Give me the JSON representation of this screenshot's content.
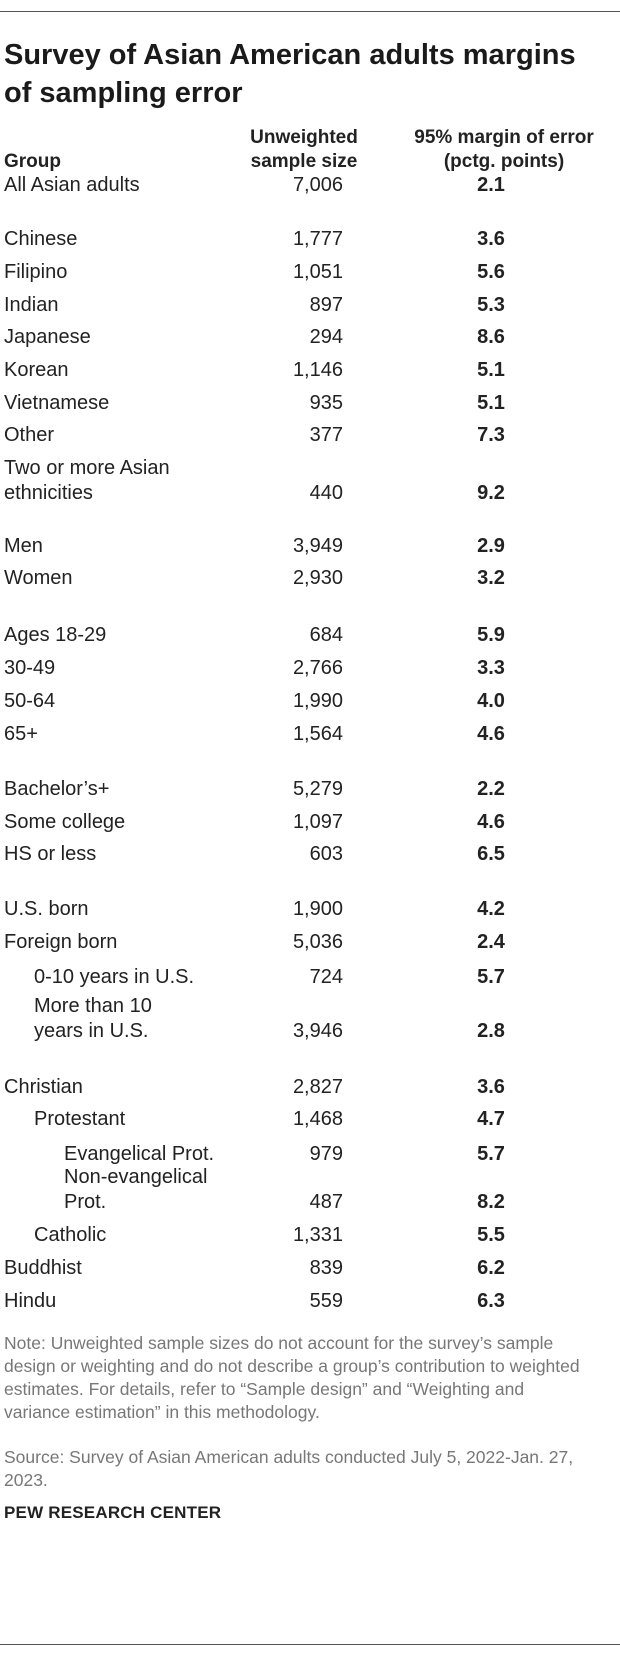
{
  "title": "Survey of Asian American adults margins of sampling error",
  "headers": {
    "group": "Group",
    "sample_size": "Unweighted sample size",
    "margin": "95% margin of error (pctg. points)"
  },
  "rows": [
    {
      "group": "All Asian adults",
      "n": "7,006",
      "moe": "2.1"
    },
    {
      "group": "Chinese",
      "n": "1,777",
      "moe": "3.6"
    },
    {
      "group": "Filipino",
      "n": "1,051",
      "moe": "5.6"
    },
    {
      "group": "Indian",
      "n": "897",
      "moe": "5.3"
    },
    {
      "group": "Japanese",
      "n": "294",
      "moe": "8.6"
    },
    {
      "group": "Korean",
      "n": "1,146",
      "moe": "5.1"
    },
    {
      "group": "Vietnamese",
      "n": "935",
      "moe": "5.1"
    },
    {
      "group": "Other",
      "n": "377",
      "moe": "7.3"
    },
    {
      "group": "Two or more Asian ethnicities",
      "n": "440",
      "moe": "9.2"
    },
    {
      "group": "Men",
      "n": "3,949",
      "moe": "2.9"
    },
    {
      "group": "Women",
      "n": "2,930",
      "moe": "3.2"
    },
    {
      "group": "Ages 18-29",
      "n": "684",
      "moe": "5.9"
    },
    {
      "group": "30-49",
      "n": "2,766",
      "moe": "3.3"
    },
    {
      "group": "50-64",
      "n": "1,990",
      "moe": "4.0"
    },
    {
      "group": "65+",
      "n": "1,564",
      "moe": "4.6"
    },
    {
      "group": "Bachelor’s+",
      "n": "5,279",
      "moe": "2.2"
    },
    {
      "group": "Some college",
      "n": "1,097",
      "moe": "4.6"
    },
    {
      "group": "HS or less",
      "n": "603",
      "moe": "6.5"
    },
    {
      "group": "U.S. born",
      "n": "1,900",
      "moe": "4.2"
    },
    {
      "group": "Foreign born",
      "n": "5,036",
      "moe": "2.4"
    },
    {
      "group": "0-10 years in U.S.",
      "n": "724",
      "moe": "5.7"
    },
    {
      "group": "More than 10 years in U.S.",
      "n": "3,946",
      "moe": "2.8"
    },
    {
      "group": "Christian",
      "n": "2,827",
      "moe": "3.6"
    },
    {
      "group": "Protestant",
      "n": "1,468",
      "moe": "4.7"
    },
    {
      "group": "Evangelical Prot.",
      "n": "979",
      "moe": "5.7"
    },
    {
      "group": "Non-evangelical Prot.",
      "n": "487",
      "moe": "8.2"
    },
    {
      "group": "Catholic",
      "n": "1,331",
      "moe": "5.5"
    },
    {
      "group": "Buddhist",
      "n": "839",
      "moe": "6.2"
    },
    {
      "group": "Hindu",
      "n": "559",
      "moe": "6.3"
    }
  ],
  "note": "Note: Unweighted sample sizes do not account for the survey’s sample design or weighting and do not describe a group’s contribution to weighted estimates. For details, refer to “Sample design” and “Weighting and variance estimation” in this methodology.",
  "source": "Source: Survey of Asian American adults conducted July 5, 2022-Jan. 27, 2023.",
  "brand": "PEW RESEARCH CENTER"
}
